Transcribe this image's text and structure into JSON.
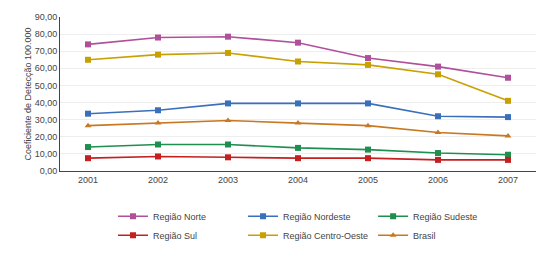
{
  "chart_data": {
    "type": "line",
    "x": [
      2001,
      2002,
      2003,
      2004,
      2005,
      2006,
      2007
    ],
    "xlim": [
      2000.6,
      2007.4
    ],
    "xticks": [
      2001,
      2002,
      2003,
      2004,
      2005,
      2006,
      2007
    ],
    "ylabel": "Coeficiente de Detecção 100.000",
    "ylim": [
      0,
      90
    ],
    "yticks": [
      {
        "value": 0,
        "label": "0,00"
      },
      {
        "value": 10,
        "label": "10,00"
      },
      {
        "value": 20,
        "label": "20,00"
      },
      {
        "value": 30,
        "label": "30,00"
      },
      {
        "value": 40,
        "label": "40,00"
      },
      {
        "value": 50,
        "label": "50,00"
      },
      {
        "value": 60,
        "label": "60,00"
      },
      {
        "value": 70,
        "label": "70,00"
      },
      {
        "value": 80,
        "label": "80,00"
      },
      {
        "value": 90,
        "label": "90,00"
      }
    ],
    "grid": true,
    "legend": "bottom",
    "series": [
      {
        "name": "Região Norte",
        "color": "#b0509a",
        "marker": "square",
        "values": [
          74.0,
          78.0,
          78.5,
          75.0,
          66.0,
          61.0,
          54.5
        ]
      },
      {
        "name": "Região Nordeste",
        "color": "#3a6fbc",
        "marker": "square",
        "values": [
          33.5,
          35.5,
          39.5,
          39.5,
          39.5,
          32.0,
          31.5
        ]
      },
      {
        "name": "Região Sudeste",
        "color": "#1f8f50",
        "marker": "square",
        "values": [
          14.0,
          15.5,
          15.5,
          13.5,
          12.5,
          10.5,
          9.5
        ]
      },
      {
        "name": "Região Sul",
        "color": "#c42020",
        "marker": "square",
        "values": [
          7.5,
          8.5,
          8.0,
          7.5,
          7.5,
          6.5,
          6.5
        ]
      },
      {
        "name": "Região Centro-Oeste",
        "color": "#c8a000",
        "marker": "square",
        "values": [
          65.0,
          68.0,
          69.0,
          64.0,
          62.0,
          56.5,
          41.0
        ]
      },
      {
        "name": "Brasil",
        "color": "#c87820",
        "marker": "triangle-up",
        "values": [
          26.5,
          28.0,
          29.5,
          28.0,
          26.5,
          22.5,
          20.5
        ]
      }
    ]
  }
}
